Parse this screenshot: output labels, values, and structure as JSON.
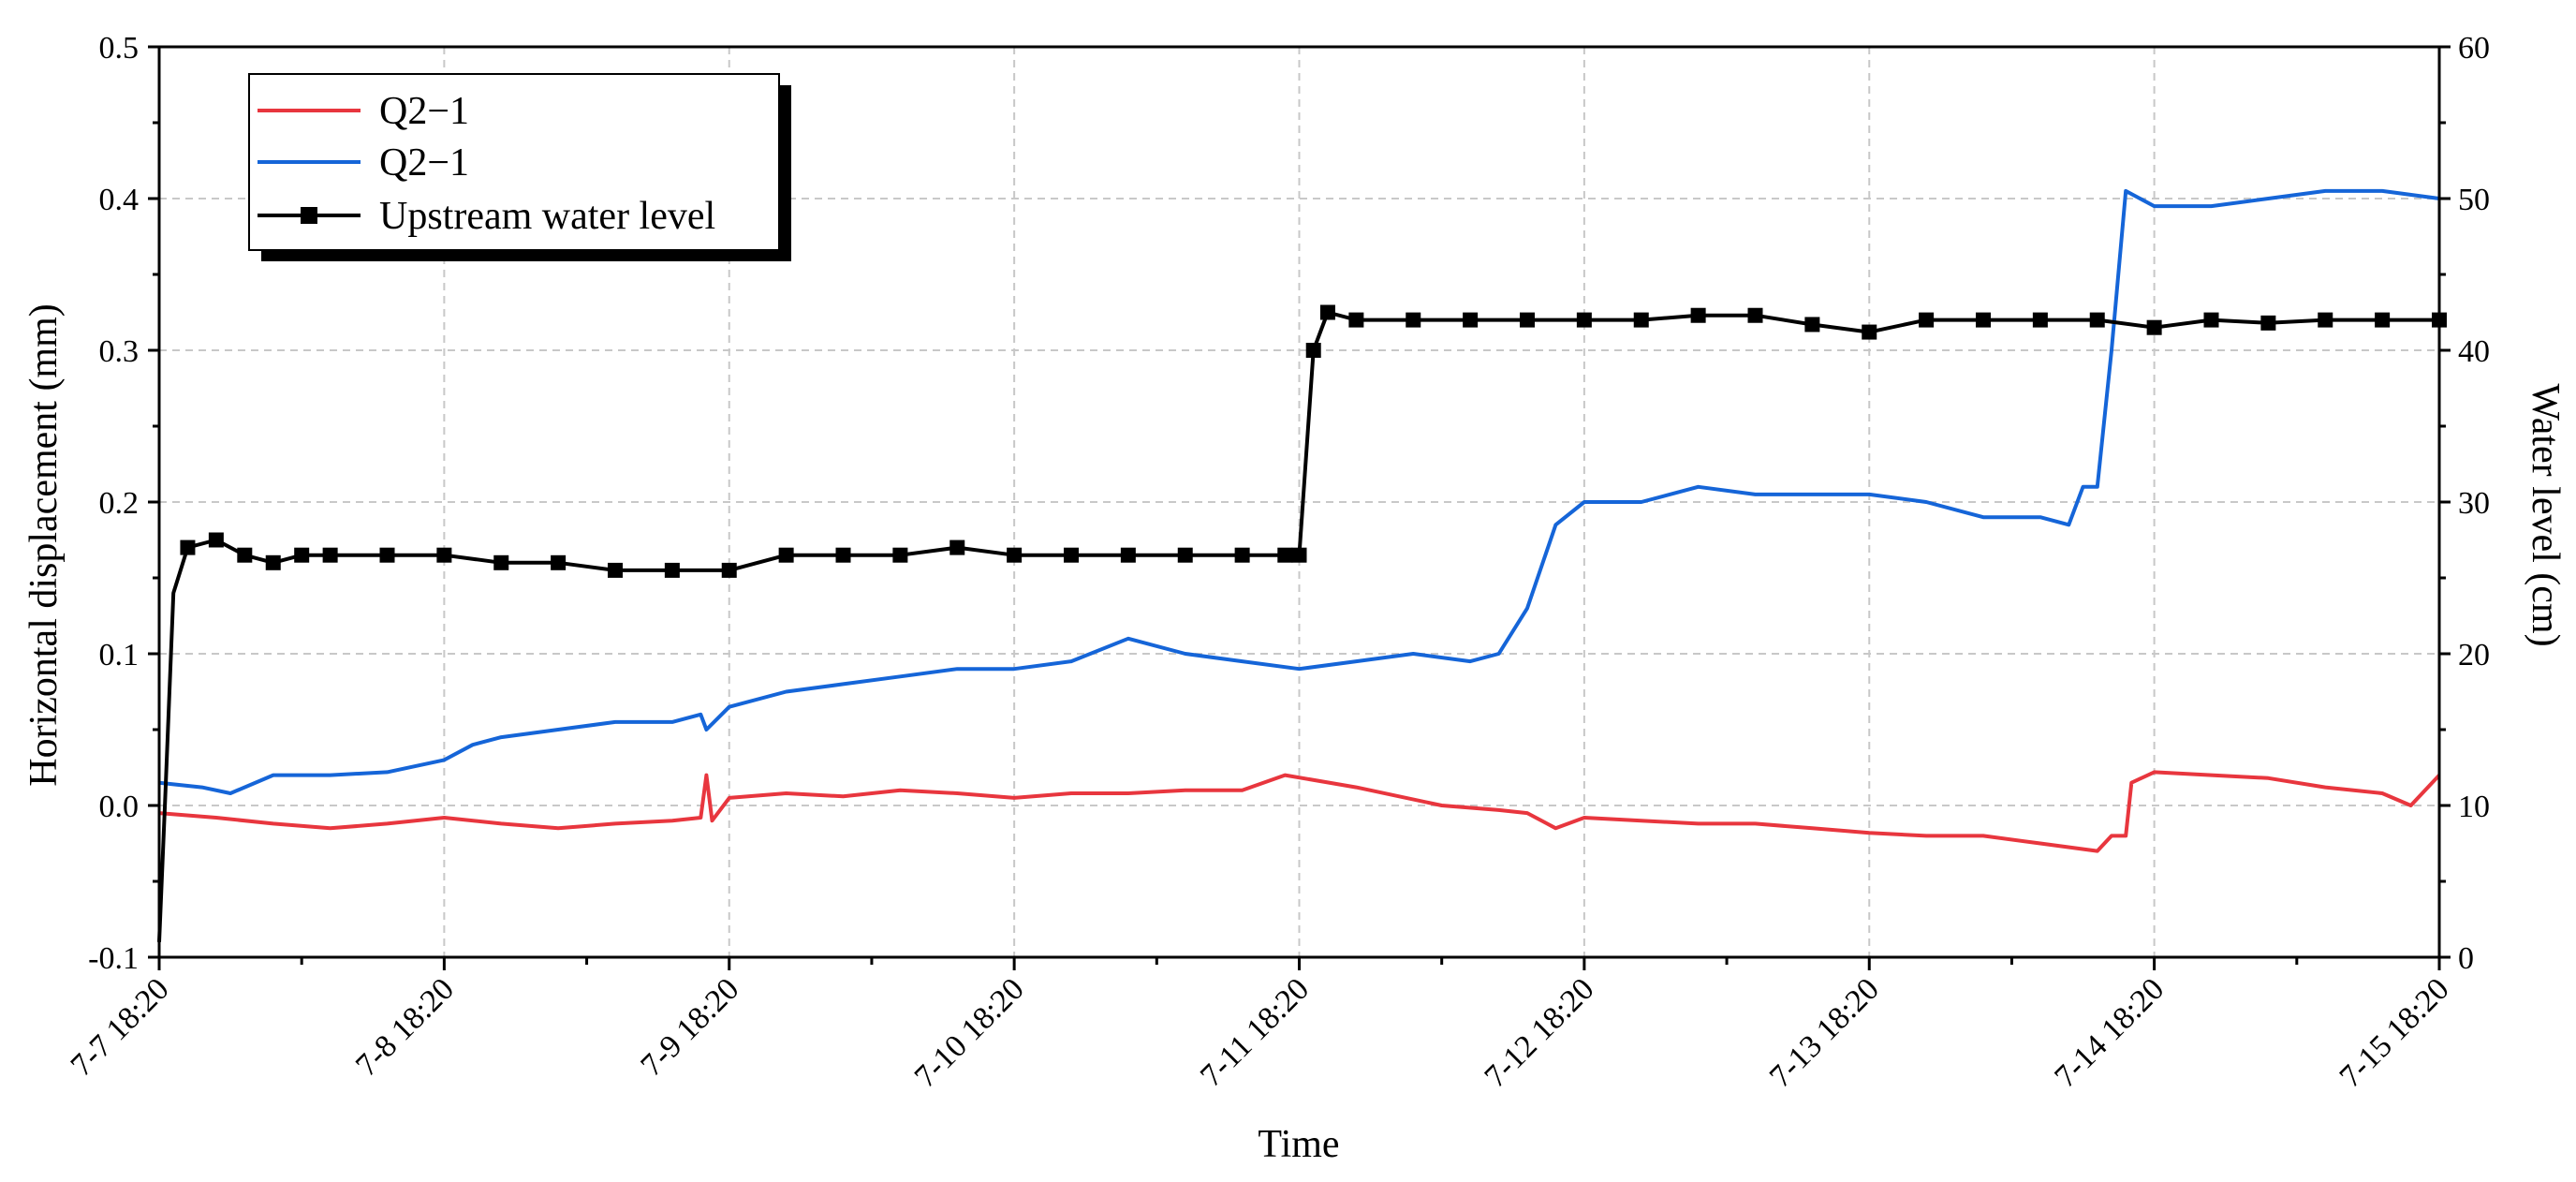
{
  "chart_data": {
    "type": "line",
    "xlabel": "Time",
    "ylabel_left": "Horizontal displacement (mm)",
    "ylabel_right": "Water level (cm)",
    "x_unit": "days since 7-7 18:20",
    "x_ticks": [
      "7-7 18:20",
      "7-8 18:20",
      "7-9 18:20",
      "7-10 18:20",
      "7-11 18:20",
      "7-12 18:20",
      "7-13 18:20",
      "7-14 18:20",
      "7-15 18:20"
    ],
    "xlim": [
      0,
      8
    ],
    "ylim_left": [
      -0.1,
      0.5
    ],
    "yticks_left": [
      "-0.1",
      "0.0",
      "0.1",
      "0.2",
      "0.3",
      "0.4",
      "0.5"
    ],
    "ylim_right": [
      0,
      60
    ],
    "yticks_right": [
      "0",
      "10",
      "20",
      "30",
      "40",
      "50",
      "60"
    ],
    "grid": true,
    "legend_position": "top-left",
    "series": [
      {
        "name": "Q2−1",
        "axis": "left",
        "color": "#e8363e",
        "marker": "none",
        "x": [
          0,
          0.2,
          0.4,
          0.6,
          0.8,
          1.0,
          1.2,
          1.4,
          1.6,
          1.8,
          1.9,
          1.92,
          1.94,
          2.0,
          2.2,
          2.4,
          2.6,
          2.8,
          3.0,
          3.2,
          3.4,
          3.6,
          3.8,
          3.95,
          4.2,
          4.5,
          4.7,
          4.8,
          4.9,
          5.0,
          5.2,
          5.4,
          5.6,
          5.8,
          6.0,
          6.2,
          6.4,
          6.6,
          6.8,
          6.85,
          6.9,
          6.92,
          7.0,
          7.2,
          7.4,
          7.6,
          7.8,
          7.9,
          8.0
        ],
        "y": [
          -0.005,
          -0.008,
          -0.012,
          -0.015,
          -0.012,
          -0.008,
          -0.012,
          -0.015,
          -0.012,
          -0.01,
          -0.008,
          0.02,
          -0.01,
          0.005,
          0.008,
          0.006,
          0.01,
          0.008,
          0.005,
          0.008,
          0.008,
          0.01,
          0.01,
          0.02,
          0.012,
          0.0,
          -0.003,
          -0.005,
          -0.015,
          -0.008,
          -0.01,
          -0.012,
          -0.012,
          -0.015,
          -0.018,
          -0.02,
          -0.02,
          -0.025,
          -0.03,
          -0.02,
          -0.02,
          0.015,
          0.022,
          0.02,
          0.018,
          0.012,
          0.008,
          0.0,
          0.02
        ]
      },
      {
        "name": "Q2−1",
        "axis": "left",
        "color": "#1565d8",
        "marker": "none",
        "x": [
          0,
          0.15,
          0.25,
          0.4,
          0.6,
          0.8,
          1.0,
          1.1,
          1.2,
          1.4,
          1.6,
          1.8,
          1.9,
          1.92,
          2.0,
          2.2,
          2.4,
          2.6,
          2.8,
          3.0,
          3.2,
          3.4,
          3.6,
          3.8,
          4.0,
          4.2,
          4.4,
          4.6,
          4.7,
          4.8,
          4.9,
          5.0,
          5.2,
          5.4,
          5.6,
          5.8,
          6.0,
          6.2,
          6.4,
          6.6,
          6.7,
          6.75,
          6.8,
          6.85,
          6.9,
          7.0,
          7.2,
          7.4,
          7.6,
          7.8,
          8.0
        ],
        "y": [
          0.015,
          0.012,
          0.008,
          0.02,
          0.02,
          0.022,
          0.03,
          0.04,
          0.045,
          0.05,
          0.055,
          0.055,
          0.06,
          0.05,
          0.065,
          0.075,
          0.08,
          0.085,
          0.09,
          0.09,
          0.095,
          0.11,
          0.1,
          0.095,
          0.09,
          0.095,
          0.1,
          0.095,
          0.1,
          0.13,
          0.185,
          0.2,
          0.2,
          0.21,
          0.205,
          0.205,
          0.205,
          0.2,
          0.19,
          0.19,
          0.185,
          0.21,
          0.21,
          0.3,
          0.405,
          0.395,
          0.395,
          0.4,
          0.405,
          0.405,
          0.4
        ]
      },
      {
        "name": "Upstream water level",
        "axis": "right",
        "color": "#000000",
        "marker": "square",
        "x": [
          0,
          0.02,
          0.05,
          0.1,
          0.2,
          0.3,
          0.4,
          0.5,
          0.6,
          0.8,
          1.0,
          1.2,
          1.4,
          1.6,
          1.8,
          2.0,
          2.2,
          2.4,
          2.6,
          2.8,
          3.0,
          3.2,
          3.4,
          3.6,
          3.8,
          3.95,
          4.0,
          4.05,
          4.1,
          4.2,
          4.4,
          4.6,
          4.8,
          5.0,
          5.2,
          5.4,
          5.6,
          5.8,
          6.0,
          6.2,
          6.4,
          6.6,
          6.8,
          7.0,
          7.2,
          7.4,
          7.6,
          7.8,
          8.0
        ],
        "y": [
          1,
          10,
          24,
          27,
          27.5,
          26.5,
          26,
          26.5,
          26.5,
          26.5,
          26.5,
          26,
          26,
          25.5,
          25.5,
          25.5,
          26.5,
          26.5,
          26.5,
          27,
          26.5,
          26.5,
          26.5,
          26.5,
          26.5,
          26.5,
          26.5,
          40,
          42.5,
          42,
          42,
          42,
          42,
          42,
          42,
          42.3,
          42.3,
          41.7,
          41.2,
          42,
          42,
          42,
          42,
          41.5,
          42,
          41.8,
          42,
          42,
          42
        ]
      }
    ]
  }
}
